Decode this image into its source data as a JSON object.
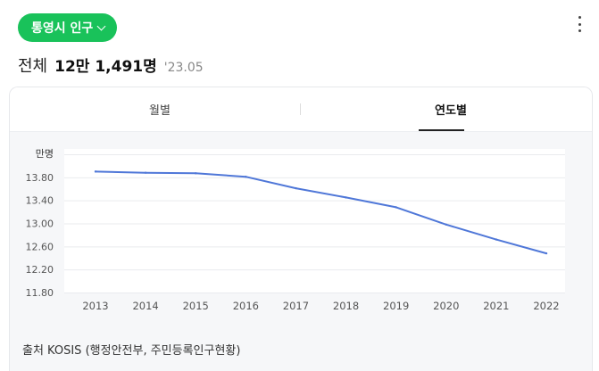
{
  "header": {
    "title_button": "통영시 인구",
    "total_label": "전체",
    "total_value": "12만 1,491명",
    "as_of": "'23.05"
  },
  "tabs": [
    {
      "label": "월별",
      "active": false
    },
    {
      "label": "연도별",
      "active": true
    }
  ],
  "chart_data": {
    "type": "line",
    "ylabel": "만명",
    "x": [
      "2013",
      "2014",
      "2015",
      "2016",
      "2017",
      "2018",
      "2019",
      "2020",
      "2021",
      "2022"
    ],
    "y_ticks": [
      "11.80",
      "12.20",
      "12.60",
      "13.00",
      "13.40",
      "13.80"
    ],
    "ylim": [
      11.8,
      14.2
    ],
    "series": [
      {
        "color": "#4f77d8",
        "values": [
          13.9,
          13.88,
          13.87,
          13.81,
          13.61,
          13.45,
          13.28,
          12.98,
          12.72,
          12.48
        ]
      }
    ],
    "grid": true
  },
  "source": "출처 KOSIS (행정안전부, 주민등록인구현황)"
}
